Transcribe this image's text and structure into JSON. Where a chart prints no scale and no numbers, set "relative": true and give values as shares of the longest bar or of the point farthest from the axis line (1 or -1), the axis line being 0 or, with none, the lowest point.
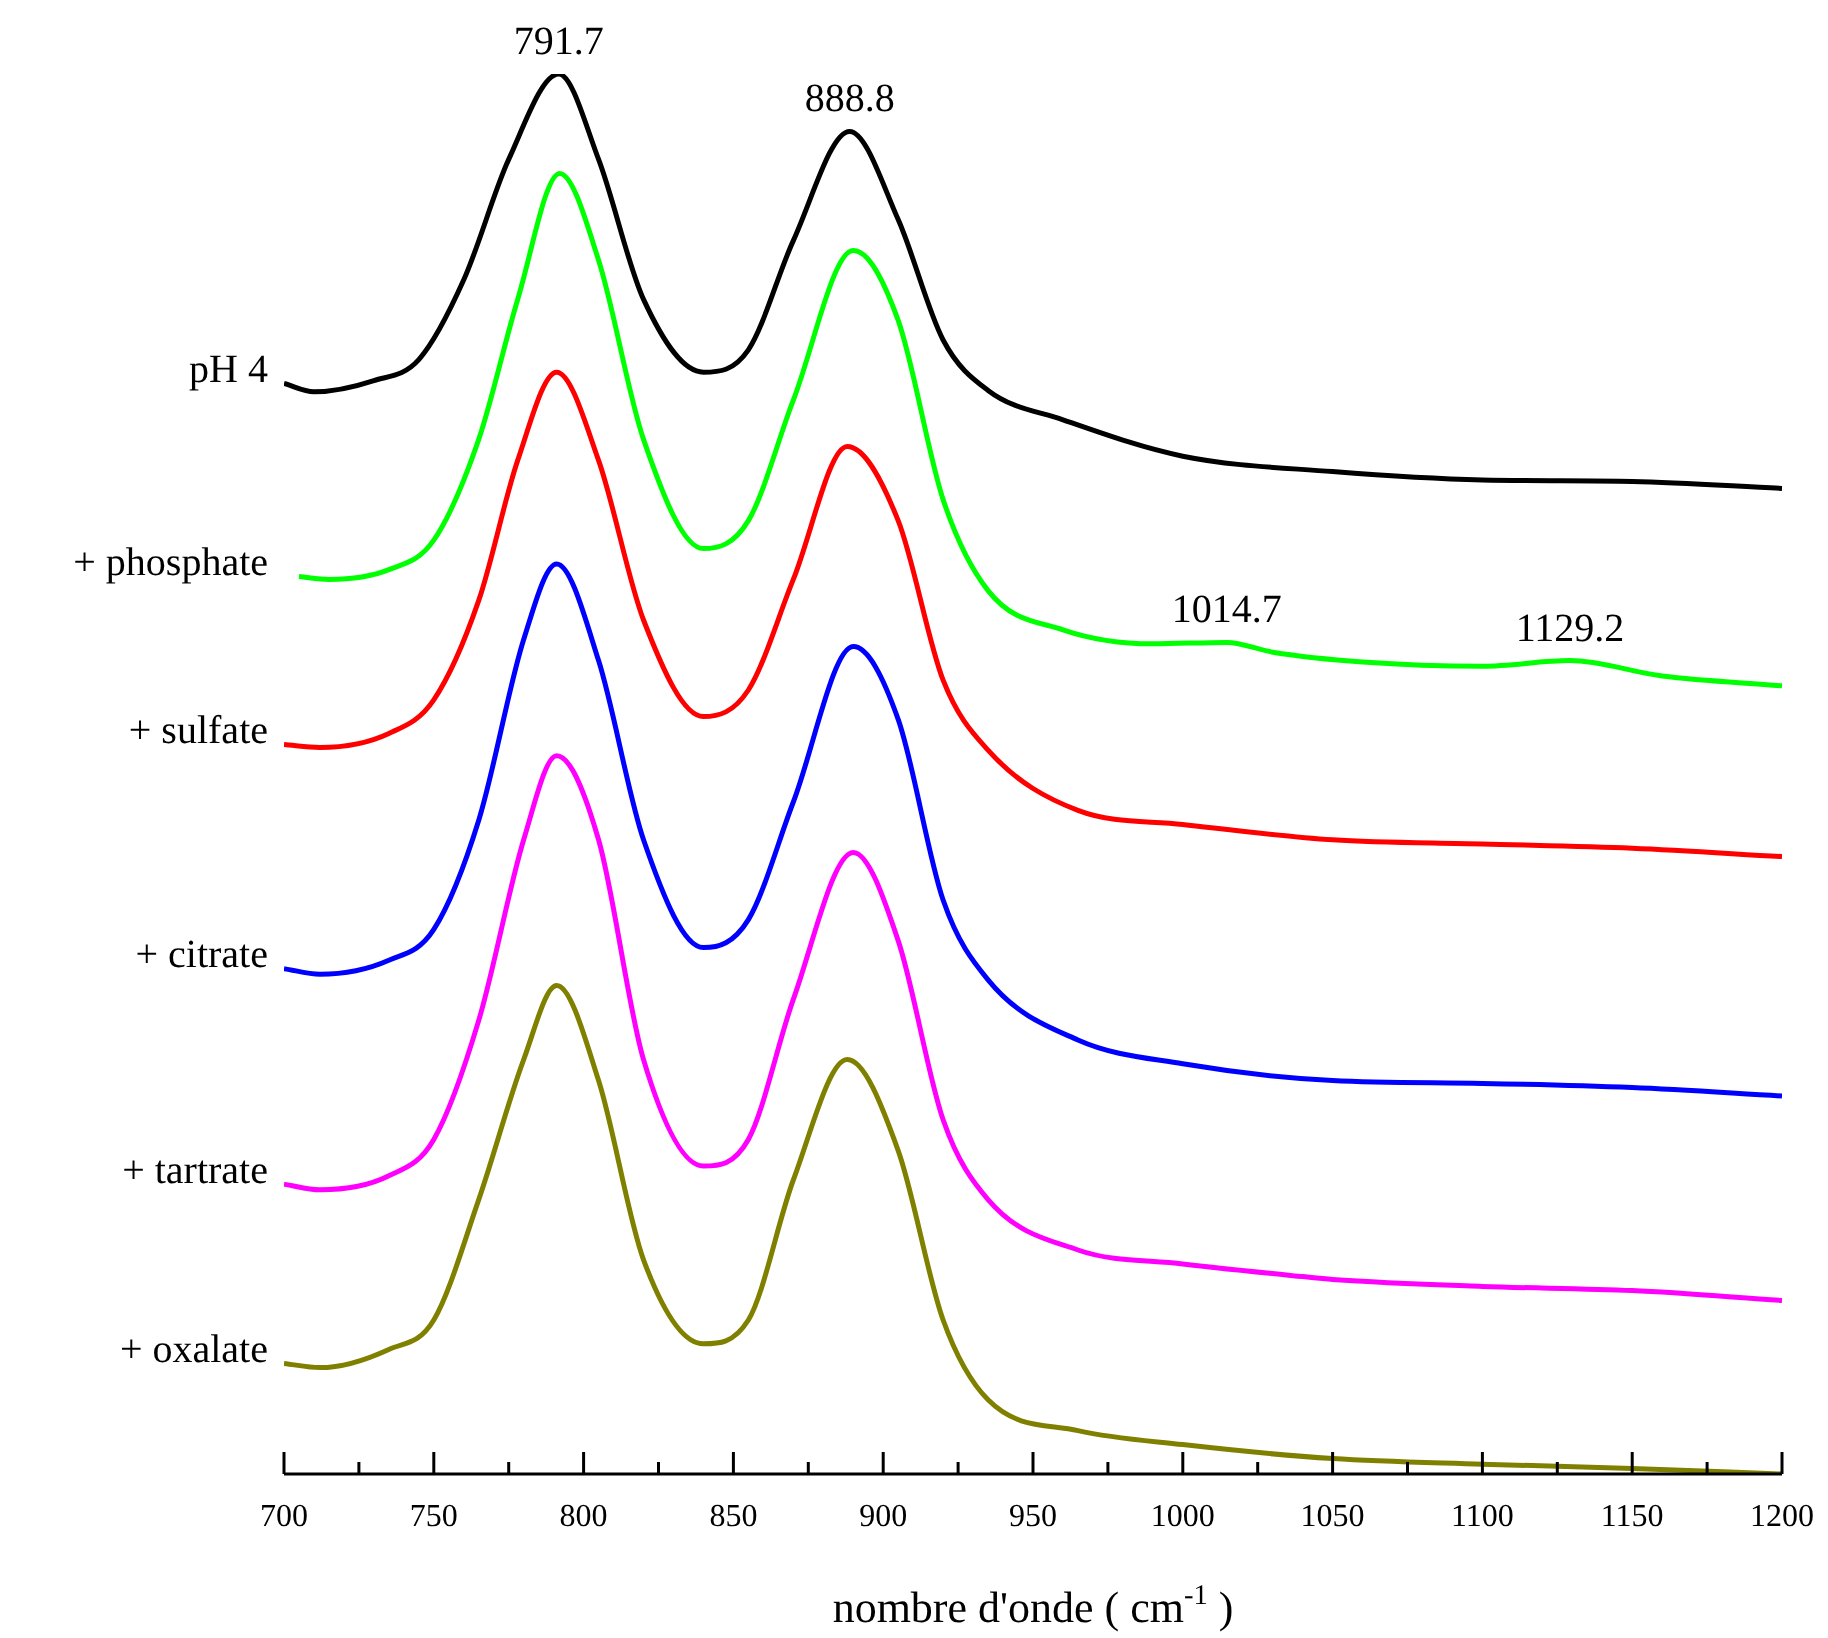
{
  "chart_data": {
    "type": "line",
    "relative": true,
    "xlabel": "nombre d'onde ( cm$^{-1}$ )",
    "xlim": [
      700,
      1200
    ],
    "xticks": [
      700,
      {
        "value": 725,
        "label": null
      },
      750,
      {
        "value": 775,
        "label": null
      },
      800,
      {
        "value": 825,
        "label": null
      },
      850,
      {
        "value": 875,
        "label": null
      },
      900,
      {
        "value": 925,
        "label": null
      },
      950,
      {
        "value": 975,
        "label": null
      },
      1000,
      {
        "value": 1025,
        "label": null
      },
      1050,
      {
        "value": 1075,
        "label": null
      },
      1100,
      {
        "value": 1125,
        "label": null
      },
      1150,
      {
        "value": 1175,
        "label": null
      },
      1200
    ],
    "grid": false,
    "legend": false,
    "annotations": [
      {
        "text": "791.7",
        "x": 791.7,
        "y": 1.0
      },
      {
        "text": "888.8",
        "x": 888.8,
        "y": 0.959
      },
      {
        "text": "1014.7",
        "x": 1014.7,
        "y": 0.594
      },
      {
        "text": "1129.2",
        "x": 1129.2,
        "y": 0.581
      }
    ],
    "series": [
      {
        "name": "pH 4",
        "color": "#000000",
        "x": [
          700,
          710,
          730,
          745,
          760,
          775,
          791.7,
          805,
          820,
          840,
          855,
          870,
          888.8,
          905,
          920,
          935,
          960,
          1000,
          1050,
          1100,
          1150,
          1200
        ],
        "values": [
          0.779,
          0.773,
          0.781,
          0.796,
          0.853,
          0.939,
          1.0,
          0.939,
          0.839,
          0.787,
          0.803,
          0.881,
          0.959,
          0.896,
          0.81,
          0.774,
          0.753,
          0.727,
          0.716,
          0.71,
          0.709,
          0.704
        ]
      },
      {
        "name": "+ phosphate",
        "color": "#00ff00",
        "x": [
          705,
          715,
          735,
          750,
          765,
          778,
          792,
          805,
          820,
          840,
          855,
          870,
          890,
          905,
          920,
          935,
          960,
          990,
          1014.7,
          1030,
          1060,
          1100,
          1129.2,
          1160,
          1200
        ],
        "values": [
          0.641,
          0.639,
          0.646,
          0.667,
          0.739,
          0.839,
          0.929,
          0.867,
          0.739,
          0.661,
          0.681,
          0.767,
          0.874,
          0.824,
          0.696,
          0.631,
          0.603,
          0.593,
          0.594,
          0.587,
          0.58,
          0.577,
          0.581,
          0.57,
          0.563
        ]
      },
      {
        "name": "+ sulfate",
        "color": "#ff0000",
        "x": [
          700,
          712,
          735,
          750,
          765,
          778,
          791,
          805,
          820,
          840,
          855,
          870,
          888,
          905,
          920,
          935,
          965,
          1000,
          1050,
          1100,
          1150,
          1200
        ],
        "values": [
          0.521,
          0.519,
          0.529,
          0.553,
          0.624,
          0.724,
          0.787,
          0.724,
          0.61,
          0.541,
          0.56,
          0.639,
          0.734,
          0.681,
          0.567,
          0.517,
          0.474,
          0.464,
          0.453,
          0.45,
          0.447,
          0.441
        ]
      },
      {
        "name": "+ citrate",
        "color": "#0000ff",
        "x": [
          700,
          712,
          735,
          750,
          765,
          780,
          791,
          805,
          820,
          840,
          855,
          870,
          890,
          905,
          920,
          935,
          965,
          1000,
          1050,
          1100,
          1150,
          1200
        ],
        "values": [
          0.361,
          0.357,
          0.367,
          0.389,
          0.467,
          0.596,
          0.65,
          0.581,
          0.453,
          0.376,
          0.396,
          0.48,
          0.591,
          0.539,
          0.41,
          0.353,
          0.31,
          0.293,
          0.281,
          0.279,
          0.276,
          0.27
        ]
      },
      {
        "name": "+ tartrate",
        "color": "#ff00ff",
        "x": [
          700,
          712,
          735,
          750,
          765,
          780,
          791,
          805,
          820,
          840,
          855,
          870,
          890,
          905,
          920,
          935,
          965,
          1000,
          1040,
          1050,
          1100,
          1150,
          1200
        ],
        "values": [
          0.207,
          0.203,
          0.213,
          0.239,
          0.324,
          0.453,
          0.513,
          0.453,
          0.296,
          0.22,
          0.239,
          0.339,
          0.444,
          0.381,
          0.253,
          0.196,
          0.16,
          0.15,
          0.141,
          0.139,
          0.134,
          0.131,
          0.124
        ]
      },
      {
        "name": "+ oxalate",
        "color": "#808000",
        "x": [
          700,
          712,
          735,
          750,
          765,
          780,
          791,
          805,
          820,
          840,
          855,
          870,
          888,
          905,
          920,
          935,
          965,
          1000,
          1050,
          1100,
          1150,
          1200
        ],
        "values": [
          0.079,
          0.076,
          0.089,
          0.11,
          0.196,
          0.296,
          0.349,
          0.281,
          0.153,
          0.093,
          0.11,
          0.21,
          0.296,
          0.231,
          0.11,
          0.053,
          0.031,
          0.021,
          0.011,
          0.007,
          0.004,
          0
        ]
      }
    ]
  }
}
